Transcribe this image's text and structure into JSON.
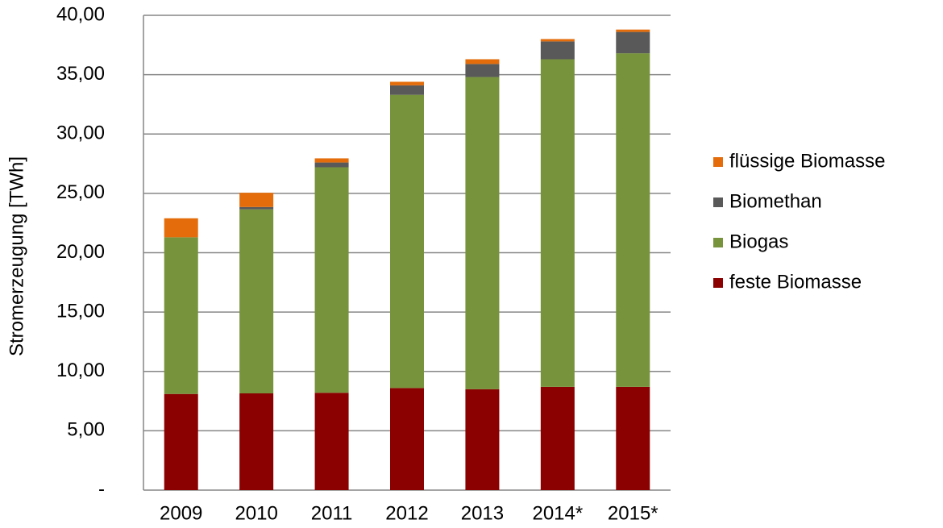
{
  "chart_data": {
    "type": "stacked_bar",
    "y_label": "Stromerzeugung [TWh]",
    "categories": [
      "2009",
      "2010",
      "2011",
      "2012",
      "2013",
      "2014*",
      "2015*"
    ],
    "series": [
      {
        "name": "feste Biomasse",
        "color": "#8b0000",
        "values": [
          8.1,
          8.15,
          8.2,
          8.6,
          8.5,
          8.7,
          8.7
        ]
      },
      {
        "name": "Biogas",
        "color": "#77933c",
        "values": [
          13.2,
          15.5,
          19.0,
          24.7,
          26.3,
          27.6,
          28.1
        ]
      },
      {
        "name": "Biomethan",
        "color": "#595959",
        "values": [
          0,
          0.2,
          0.4,
          0.8,
          1.1,
          1.5,
          1.8
        ]
      },
      {
        "name": "flüssige Biomasse",
        "color": "#e46c0a",
        "values": [
          1.6,
          1.2,
          0.35,
          0.3,
          0.4,
          0.2,
          0.2
        ]
      }
    ],
    "ylim": [
      0,
      40
    ],
    "yticks": [
      {
        "value": 0,
        "label": "-"
      },
      {
        "value": 5,
        "label": "5,00"
      },
      {
        "value": 10,
        "label": "10,00"
      },
      {
        "value": 15,
        "label": "15,00"
      },
      {
        "value": 20,
        "label": "20,00"
      },
      {
        "value": 25,
        "label": "25,00"
      },
      {
        "value": 30,
        "label": "30,00"
      },
      {
        "value": 35,
        "label": "35,00"
      },
      {
        "value": 40,
        "label": "40,00"
      }
    ],
    "grid": true,
    "legend": "right"
  }
}
